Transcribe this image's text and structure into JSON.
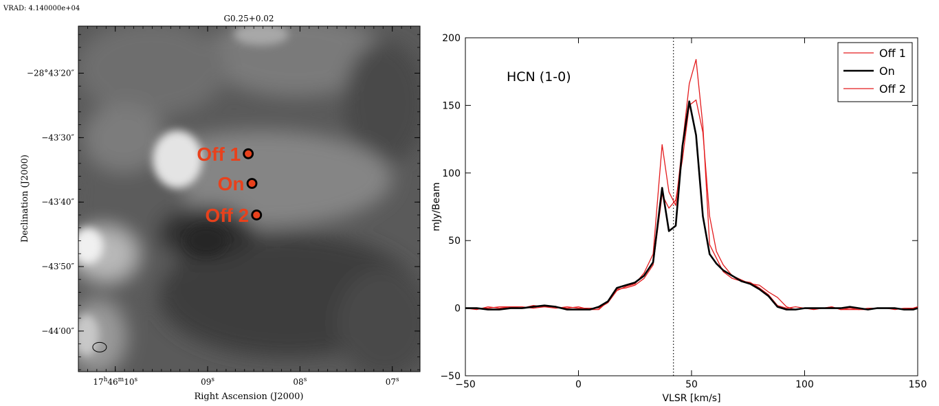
{
  "vrad_label": "VRAD: 4.140000e+04",
  "chart_data": [
    {
      "type": "image",
      "title": "G0.25+0.02",
      "xlabel": "Right Ascension (J2000)",
      "ylabel": "Declination (J2000)",
      "x_ticks": [
        {
          "main": "17",
          "sup1": "h",
          "mid": "46",
          "sup2": "m",
          "sec": "10",
          "sup3": "s",
          "ra_sec": 10
        },
        {
          "sec": "09",
          "sup3": "s",
          "ra_sec": 9
        },
        {
          "sec": "08",
          "sup3": "s",
          "ra_sec": 8
        },
        {
          "sec": "07",
          "sup3": "s",
          "ra_sec": 7
        }
      ],
      "y_ticks": [
        {
          "label": "−28°43′20″",
          "dec_arcsec": -20
        },
        {
          "label": "−43′30″",
          "dec_arcsec": -30
        },
        {
          "label": "−43′40″",
          "dec_arcsec": -40
        },
        {
          "label": "−43′50″",
          "dec_arcsec": -50
        },
        {
          "label": "−44′00″",
          "dec_arcsec": -60
        }
      ],
      "x_range": [
        10.4,
        6.7
      ],
      "y_range": [
        -66.3,
        -12.7
      ],
      "colormap": "grayscale",
      "markers": [
        {
          "label": "Off 1",
          "ra_sec": 8.56,
          "dec_arcsec": -32.5,
          "color": "#e8411c"
        },
        {
          "label": "On",
          "ra_sec": 8.52,
          "dec_arcsec": -37.1,
          "color": "#e8411c"
        },
        {
          "label": "Off 2",
          "ra_sec": 8.47,
          "dec_arcsec": -42.0,
          "color": "#e8411c"
        }
      ],
      "beam": {
        "ra_sec": 10.17,
        "dec_arcsec": -62.5
      }
    },
    {
      "type": "line",
      "annotation": "HCN (1-0)",
      "xlabel": "VLSR [km/s]",
      "ylabel": "mJy/Beam",
      "xlim": [
        -50,
        150
      ],
      "ylim": [
        -50,
        200
      ],
      "x_ticks": [
        -50,
        0,
        50,
        100,
        150
      ],
      "y_ticks": [
        -50,
        0,
        50,
        100,
        150,
        200
      ],
      "x_tick_labels": [
        "−50",
        "0",
        "50",
        "100",
        "150"
      ],
      "y_tick_labels": [
        "−50",
        "0",
        "50",
        "100",
        "150",
        "200"
      ],
      "vline": 42,
      "legend_position": "top-right",
      "series": [
        {
          "name": "Off 1",
          "color": "#e31a1c",
          "width": 1.3,
          "x": [
            -50,
            -45,
            -40,
            -35,
            -30,
            -25,
            -20,
            -15,
            -10,
            -5,
            0,
            5,
            9,
            13,
            17,
            21,
            25,
            29,
            33,
            37,
            40,
            43,
            46,
            49,
            52,
            55,
            58,
            61,
            64,
            68,
            72,
            76,
            80,
            84,
            88,
            92,
            96,
            100,
            104,
            108,
            112,
            116,
            120,
            124,
            128,
            132,
            136,
            140,
            144,
            148,
            150
          ],
          "y": [
            0,
            -1,
            1,
            0,
            1,
            1,
            0,
            1,
            1,
            0,
            1,
            -1,
            -1,
            5,
            14,
            15,
            17,
            22,
            32,
            84,
            74,
            80,
            110,
            150,
            154,
            130,
            68,
            42,
            32,
            24,
            21,
            18,
            17,
            12,
            8,
            1,
            -1,
            0,
            0,
            0,
            1,
            -1,
            0,
            -1,
            -1,
            0,
            0,
            0,
            -1,
            0,
            1
          ]
        },
        {
          "name": "On",
          "color": "#000000",
          "width": 2.6,
          "x": [
            -50,
            -45,
            -40,
            -35,
            -30,
            -25,
            -20,
            -15,
            -10,
            -5,
            0,
            5,
            9,
            13,
            17,
            21,
            25,
            29,
            33,
            37,
            40,
            43,
            46,
            49,
            52,
            55,
            58,
            61,
            64,
            68,
            72,
            76,
            80,
            84,
            88,
            92,
            96,
            100,
            104,
            108,
            112,
            116,
            120,
            124,
            128,
            132,
            136,
            140,
            144,
            148,
            150
          ],
          "y": [
            0,
            0,
            -1,
            -1,
            0,
            0,
            1,
            2,
            1,
            -1,
            -1,
            -1,
            1,
            5,
            15,
            17,
            19,
            24,
            34,
            89,
            57,
            61,
            120,
            153,
            128,
            68,
            40,
            33,
            28,
            24,
            20,
            18,
            14,
            9,
            1,
            -1,
            -1,
            0,
            0,
            0,
            0,
            0,
            1,
            0,
            -1,
            0,
            0,
            0,
            -1,
            -1,
            0
          ]
        },
        {
          "name": "Off 2",
          "color": "#e31a1c",
          "width": 1.3,
          "x": [
            -50,
            -45,
            -40,
            -35,
            -30,
            -25,
            -20,
            -15,
            -10,
            -5,
            0,
            5,
            9,
            13,
            17,
            21,
            25,
            29,
            33,
            37,
            40,
            43,
            46,
            49,
            52,
            55,
            58,
            61,
            64,
            68,
            72,
            76,
            80,
            84,
            88,
            92,
            96,
            100,
            104,
            108,
            112,
            116,
            120,
            124,
            128,
            132,
            136,
            140,
            144,
            148,
            150
          ],
          "y": [
            0,
            0,
            0,
            1,
            1,
            0,
            2,
            1,
            0,
            1,
            0,
            0,
            0,
            4,
            13,
            16,
            18,
            26,
            40,
            121,
            86,
            76,
            121,
            166,
            184,
            135,
            47,
            37,
            27,
            22,
            20,
            19,
            15,
            10,
            2,
            0,
            1,
            0,
            -1,
            0,
            1,
            -1,
            -1,
            -1,
            0,
            0,
            0,
            -1,
            0,
            0,
            1
          ]
        }
      ]
    }
  ]
}
